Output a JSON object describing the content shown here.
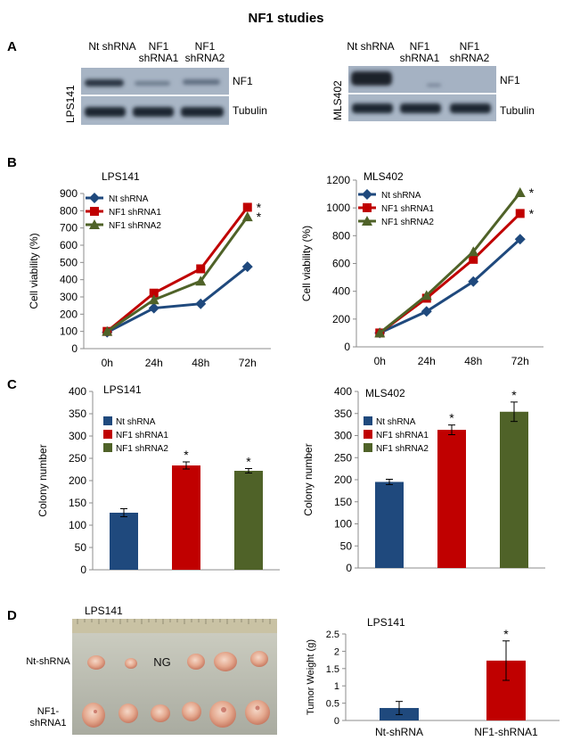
{
  "figure": {
    "title": "NF1 studies",
    "panel_labels": [
      "A",
      "B",
      "C",
      "D"
    ]
  },
  "panel_a": {
    "blots": [
      {
        "cell_line": "LPS141",
        "lanes": [
          "Nt shRNA",
          "NF1 shRNA1",
          "NF1 shRNA2"
        ],
        "rows": [
          "NF1",
          "Tubulin"
        ]
      },
      {
        "cell_line": "MLS402",
        "lanes": [
          "Nt shRNA",
          "NF1 shRNA1",
          "NF1 shRNA2"
        ],
        "rows": [
          "NF1",
          "Tubulin"
        ]
      }
    ]
  },
  "panel_d_photo": {
    "cell_line": "LPS141",
    "row_labels": [
      "Nt-shRNA",
      "NF1-shRNA1"
    ],
    "annotation": "NG"
  },
  "colors": {
    "nt": "#1f497d",
    "sh1": "#c00000",
    "sh2": "#4f6228"
  },
  "chart_data": [
    {
      "id": "b-lps141",
      "type": "line",
      "title": "LPS141",
      "xlabel": "",
      "ylabel": "Cell viability (%)",
      "categories": [
        "0h",
        "24h",
        "48h",
        "72h"
      ],
      "ylim": [
        0,
        900
      ],
      "yticks": [
        0,
        100,
        200,
        300,
        400,
        500,
        600,
        700,
        800,
        900
      ],
      "series": [
        {
          "name": "Nt shRNA",
          "values": [
            95,
            235,
            260,
            475
          ],
          "marker": "diamond",
          "color": "#1f497d",
          "sig": [
            false,
            false,
            false,
            false
          ]
        },
        {
          "name": "NF1 shRNA1",
          "values": [
            100,
            322,
            463,
            820
          ],
          "marker": "square",
          "color": "#c00000",
          "sig": [
            false,
            false,
            false,
            true
          ]
        },
        {
          "name": "NF1 shRNA2",
          "values": [
            100,
            283,
            392,
            765
          ],
          "marker": "triangle",
          "color": "#4f6228",
          "sig": [
            false,
            false,
            false,
            true
          ]
        }
      ],
      "star": "*"
    },
    {
      "id": "b-mls402",
      "type": "line",
      "title": "MLS402",
      "xlabel": "",
      "ylabel": "Cell viability (%)",
      "categories": [
        "0h",
        "24h",
        "48h",
        "72h"
      ],
      "ylim": [
        0,
        1200
      ],
      "yticks": [
        0,
        200,
        400,
        600,
        800,
        1000,
        1200
      ],
      "series": [
        {
          "name": "Nt shRNA",
          "values": [
            100,
            255,
            470,
            775
          ],
          "marker": "diamond",
          "color": "#1f497d",
          "sig": [
            false,
            false,
            false,
            false
          ]
        },
        {
          "name": "NF1 shRNA1",
          "values": [
            100,
            350,
            630,
            960
          ],
          "marker": "square",
          "color": "#c00000",
          "sig": [
            false,
            false,
            false,
            true
          ]
        },
        {
          "name": "NF1 shRNA2",
          "values": [
            100,
            370,
            685,
            1110
          ],
          "marker": "triangle",
          "color": "#4f6228",
          "sig": [
            false,
            false,
            false,
            true
          ]
        }
      ],
      "star": "*"
    },
    {
      "id": "c-lps141",
      "type": "bar",
      "title": "LPS141",
      "xlabel": "",
      "ylabel": "Colony number",
      "categories": [
        "Nt shRNA",
        "NF1 shRNA1",
        "NF1 shRNA2"
      ],
      "values": [
        128,
        234,
        222
      ],
      "errors": [
        9,
        8,
        5
      ],
      "colors": [
        "#1f497d",
        "#c00000",
        "#4f6228"
      ],
      "sig": [
        false,
        true,
        true
      ],
      "ylim": [
        0,
        400
      ],
      "yticks": [
        0,
        50,
        100,
        150,
        200,
        250,
        300,
        350,
        400
      ],
      "legend": true,
      "star": "*"
    },
    {
      "id": "c-mls402",
      "type": "bar",
      "title": "MLS402",
      "xlabel": "",
      "ylabel": "Colony number",
      "categories": [
        "Nt shRNA",
        "NF1 shRNA1",
        "NF1 shRNA2"
      ],
      "values": [
        195,
        313,
        354
      ],
      "errors": [
        6,
        11,
        22
      ],
      "colors": [
        "#1f497d",
        "#c00000",
        "#4f6228"
      ],
      "sig": [
        false,
        true,
        true
      ],
      "ylim": [
        0,
        400
      ],
      "yticks": [
        0,
        50,
        100,
        150,
        200,
        250,
        300,
        350,
        400
      ],
      "legend": true,
      "star": "*"
    },
    {
      "id": "d-tumor",
      "type": "bar",
      "title": "LPS141",
      "xlabel": "",
      "ylabel": "Tumor Weight (g)",
      "categories": [
        "Nt-shRNA",
        "NF1-shRNA1"
      ],
      "values": [
        0.36,
        1.73
      ],
      "errors": [
        0.19,
        0.57
      ],
      "colors": [
        "#1f497d",
        "#c00000"
      ],
      "sig": [
        false,
        true
      ],
      "ylim": [
        0,
        2.5
      ],
      "yticks": [
        0,
        0.5,
        1,
        1.5,
        2,
        2.5
      ],
      "legend": false,
      "star": "*"
    }
  ]
}
